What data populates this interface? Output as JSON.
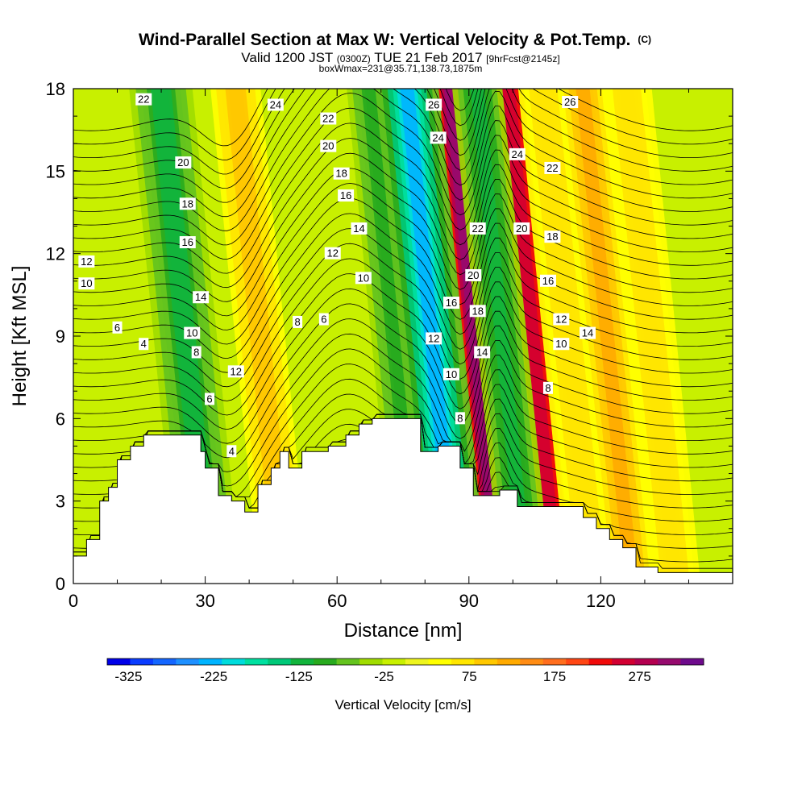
{
  "chart_data": {
    "type": "heatmap",
    "title": "Wind-Parallel Section at Max W: Vertical Velocity & Pot.Temp.",
    "title_mark": "(C)",
    "subtitle_main": "Valid 1200 JST",
    "subtitle_utc": "(0300Z)",
    "subtitle_date": "TUE 21 Feb 2017",
    "subtitle_fcst": "[9hrFcst@2145z]",
    "subtitle2": "boxWmax=231@35.71,138.73,1875m",
    "xlabel": "Distance [nm]",
    "ylabel": "Height [Kft MSL]",
    "xlim": [
      0,
      150
    ],
    "ylim": [
      0,
      18
    ],
    "x_ticks": [
      "0",
      "30",
      "60",
      "90",
      "120"
    ],
    "y_ticks": [
      "0",
      "3",
      "6",
      "9",
      "12",
      "15",
      "18"
    ],
    "colorbar": {
      "label": "Vertical Velocity [cm/s]",
      "tick_labels": [
        "-325",
        "-225",
        "-125",
        "-25",
        "75",
        "175",
        "275"
      ],
      "range": [
        -350,
        350
      ],
      "colors": [
        "#0000e8",
        "#0a3cff",
        "#1466ff",
        "#1e90ff",
        "#00b4ff",
        "#00dcdc",
        "#00e0a0",
        "#00c878",
        "#12b43c",
        "#28aa1e",
        "#64c31e",
        "#a0dc00",
        "#c8f000",
        "#eef51e",
        "#ffff00",
        "#ffe600",
        "#ffc800",
        "#ffaa00",
        "#ff8c14",
        "#ff6e1e",
        "#ff4614",
        "#f00a0a",
        "#d20032",
        "#b40050",
        "#960a6e",
        "#6e0a8c"
      ]
    },
    "updrafts": [
      {
        "x": 45,
        "peak": 100
      },
      {
        "x": 94,
        "peak": 300
      },
      {
        "x": 107,
        "peak": 260
      },
      {
        "x": 115,
        "peak": 70
      },
      {
        "x": 124,
        "peak": 110
      },
      {
        "x": 134,
        "peak": 75
      }
    ],
    "downdrafts": [
      {
        "x": 28,
        "peak": -120
      },
      {
        "x": 76,
        "peak": -90
      },
      {
        "x": 84,
        "peak": -220
      },
      {
        "x": 100,
        "peak": -110
      }
    ],
    "terrain_kft": [
      [
        0,
        1.0
      ],
      [
        3,
        1.0
      ],
      [
        3,
        1.6
      ],
      [
        6,
        1.6
      ],
      [
        6,
        3.0
      ],
      [
        8,
        3.0
      ],
      [
        8,
        3.5
      ],
      [
        10,
        3.5
      ],
      [
        10,
        4.5
      ],
      [
        13,
        4.5
      ],
      [
        13,
        5.0
      ],
      [
        16,
        5.0
      ],
      [
        16,
        5.4
      ],
      [
        20,
        5.4
      ],
      [
        20,
        5.4
      ],
      [
        29,
        5.4
      ],
      [
        29,
        4.8
      ],
      [
        30,
        4.8
      ],
      [
        30,
        4.2
      ],
      [
        33,
        4.2
      ],
      [
        33,
        3.2
      ],
      [
        36,
        3.2
      ],
      [
        36,
        3.0
      ],
      [
        39,
        3.0
      ],
      [
        39,
        2.6
      ],
      [
        42,
        2.6
      ],
      [
        42,
        3.6
      ],
      [
        45,
        3.6
      ],
      [
        45,
        4.2
      ],
      [
        47,
        4.2
      ],
      [
        47,
        4.8
      ],
      [
        49,
        4.8
      ],
      [
        49,
        4.2
      ],
      [
        52,
        4.2
      ],
      [
        52,
        4.8
      ],
      [
        58,
        4.8
      ],
      [
        58,
        5.0
      ],
      [
        62,
        5.0
      ],
      [
        62,
        5.4
      ],
      [
        65,
        5.4
      ],
      [
        65,
        5.8
      ],
      [
        68,
        5.8
      ],
      [
        68,
        6.0
      ],
      [
        75,
        6.0
      ],
      [
        75,
        6.0
      ],
      [
        79,
        6.0
      ],
      [
        79,
        4.8
      ],
      [
        83,
        4.8
      ],
      [
        83,
        5.0
      ],
      [
        88,
        5.0
      ],
      [
        88,
        4.2
      ],
      [
        91,
        4.2
      ],
      [
        91,
        3.2
      ],
      [
        97,
        3.2
      ],
      [
        97,
        3.4
      ],
      [
        101,
        3.4
      ],
      [
        101,
        2.8
      ],
      [
        116,
        2.8
      ],
      [
        116,
        2.4
      ],
      [
        119,
        2.4
      ],
      [
        119,
        2.0
      ],
      [
        122,
        2.0
      ],
      [
        122,
        1.6
      ],
      [
        125,
        1.6
      ],
      [
        125,
        1.3
      ],
      [
        128,
        1.3
      ],
      [
        128,
        0.6
      ],
      [
        133,
        0.6
      ],
      [
        133,
        0.4
      ],
      [
        150,
        0.4
      ]
    ],
    "theta_labels": [
      {
        "t": "22",
        "x": 16,
        "y": 17.6
      },
      {
        "t": "24",
        "x": 46,
        "y": 17.4
      },
      {
        "t": "22",
        "x": 58,
        "y": 16.9
      },
      {
        "t": "20",
        "x": 58,
        "y": 15.9
      },
      {
        "t": "18",
        "x": 61,
        "y": 14.9
      },
      {
        "t": "16",
        "x": 62,
        "y": 14.1
      },
      {
        "t": "14",
        "x": 65,
        "y": 12.9
      },
      {
        "t": "12",
        "x": 59,
        "y": 12.0
      },
      {
        "t": "10",
        "x": 66,
        "y": 11.1
      },
      {
        "t": "8",
        "x": 51,
        "y": 9.5
      },
      {
        "t": "6",
        "x": 57,
        "y": 9.6
      },
      {
        "t": "20",
        "x": 25,
        "y": 15.3
      },
      {
        "t": "18",
        "x": 26,
        "y": 13.8
      },
      {
        "t": "16",
        "x": 26,
        "y": 12.4
      },
      {
        "t": "14",
        "x": 29,
        "y": 10.4
      },
      {
        "t": "10",
        "x": 27,
        "y": 9.1
      },
      {
        "t": "8",
        "x": 28,
        "y": 8.4
      },
      {
        "t": "12",
        "x": 37,
        "y": 7.7
      },
      {
        "t": "6",
        "x": 31,
        "y": 6.7
      },
      {
        "t": "4",
        "x": 36,
        "y": 4.8
      },
      {
        "t": "12",
        "x": 3,
        "y": 11.7
      },
      {
        "t": "10",
        "x": 3,
        "y": 10.9
      },
      {
        "t": "6",
        "x": 10,
        "y": 9.3
      },
      {
        "t": "4",
        "x": 16,
        "y": 8.7
      },
      {
        "t": "26",
        "x": 82,
        "y": 17.4
      },
      {
        "t": "24",
        "x": 83,
        "y": 16.2
      },
      {
        "t": "22",
        "x": 92,
        "y": 12.9
      },
      {
        "t": "20",
        "x": 91,
        "y": 11.2
      },
      {
        "t": "18",
        "x": 92,
        "y": 9.9
      },
      {
        "t": "16",
        "x": 86,
        "y": 10.2
      },
      {
        "t": "12",
        "x": 82,
        "y": 8.9
      },
      {
        "t": "10",
        "x": 86,
        "y": 7.6
      },
      {
        "t": "14",
        "x": 93,
        "y": 8.4
      },
      {
        "t": "8",
        "x": 88,
        "y": 6.0
      },
      {
        "t": "26",
        "x": 113,
        "y": 17.5
      },
      {
        "t": "24",
        "x": 101,
        "y": 15.6
      },
      {
        "t": "22",
        "x": 109,
        "y": 15.1
      },
      {
        "t": "20",
        "x": 102,
        "y": 12.9
      },
      {
        "t": "18",
        "x": 109,
        "y": 12.6
      },
      {
        "t": "16",
        "x": 108,
        "y": 11.0
      },
      {
        "t": "12",
        "x": 111,
        "y": 9.6
      },
      {
        "t": "14",
        "x": 117,
        "y": 9.1
      },
      {
        "t": "10",
        "x": 111,
        "y": 8.7
      },
      {
        "t": "8",
        "x": 108,
        "y": 7.1
      }
    ]
  }
}
